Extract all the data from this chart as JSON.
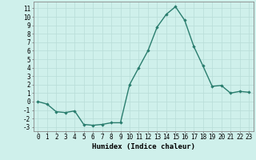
{
  "x": [
    0,
    1,
    2,
    3,
    4,
    5,
    6,
    7,
    8,
    9,
    10,
    11,
    12,
    13,
    14,
    15,
    16,
    17,
    18,
    19,
    20,
    21,
    22,
    23
  ],
  "y": [
    0.0,
    -0.3,
    -1.2,
    -1.3,
    -1.1,
    -2.7,
    -2.8,
    -2.7,
    -2.5,
    -2.5,
    2.0,
    4.0,
    6.0,
    8.8,
    10.3,
    11.2,
    9.6,
    6.5,
    4.2,
    1.8,
    1.9,
    1.0,
    1.2,
    1.1
  ],
  "line_color": "#2a7d6e",
  "marker": "D",
  "marker_size": 1.8,
  "line_width": 1.0,
  "xlabel": "Humidex (Indice chaleur)",
  "xlim": [
    -0.5,
    23.5
  ],
  "ylim": [
    -3.5,
    11.8
  ],
  "yticks": [
    -3,
    -2,
    -1,
    0,
    1,
    2,
    3,
    4,
    5,
    6,
    7,
    8,
    9,
    10,
    11
  ],
  "xticks": [
    0,
    1,
    2,
    3,
    4,
    5,
    6,
    7,
    8,
    9,
    10,
    11,
    12,
    13,
    14,
    15,
    16,
    17,
    18,
    19,
    20,
    21,
    22,
    23
  ],
  "bg_color": "#cff0eb",
  "grid_color": "#b8ddd8",
  "label_fontsize": 6.5,
  "tick_fontsize": 5.5
}
